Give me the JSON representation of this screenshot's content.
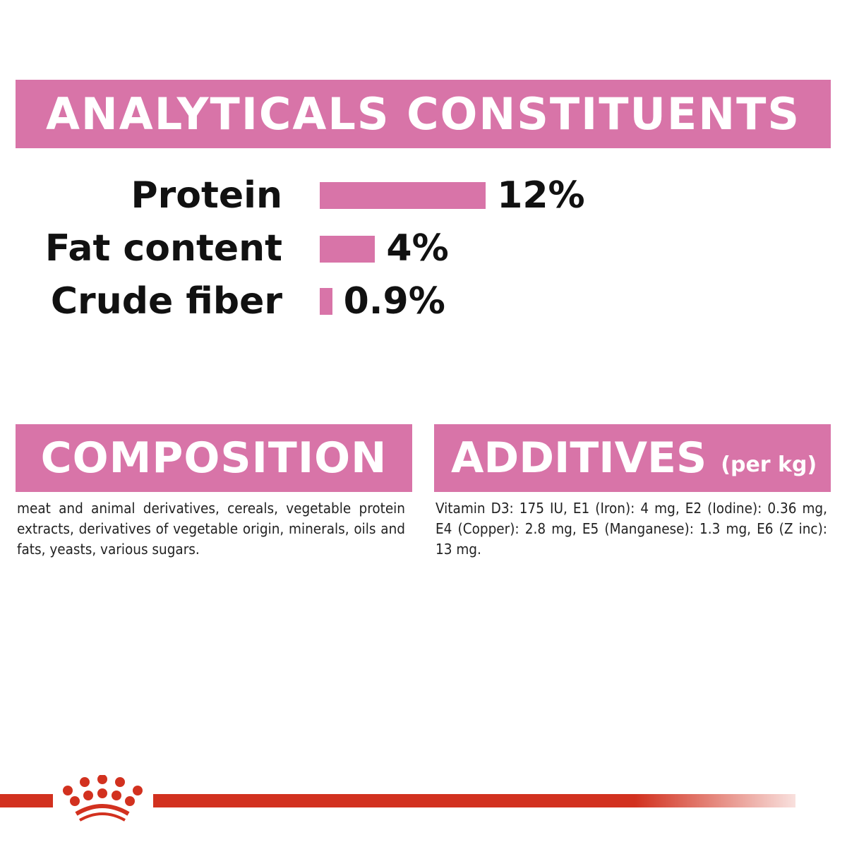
{
  "analytical": {
    "title": "ANALYTICALS CONSTITUENTS",
    "items": [
      {
        "label": "Protein",
        "value": 12,
        "display": "12%"
      },
      {
        "label": "Fat content",
        "value": 4,
        "display": "4%"
      },
      {
        "label": "Crude fiber",
        "value": 0.9,
        "display": "0.9%"
      }
    ]
  },
  "composition": {
    "title": "COMPOSITION",
    "text": "meat and animal derivatives, cereals, vegetable protein extracts, derivatives of vegetable origin, minerals, oils and fats, yeasts, various sugars."
  },
  "additives": {
    "title": "ADDITIVES",
    "unit": "(per kg)",
    "text": "Vitamin D3: 175 IU, E1 (Iron): 4 mg, E2 (Iodine): 0.36 mg, E4 (Copper): 2.8 mg, E5 (Manganese): 1.3 mg, E6 (Z inc): 13 mg."
  },
  "colors": {
    "accent": "#d874a8",
    "brand": "#d2311f"
  },
  "logo": {
    "icon": "royal-canin-crown-icon"
  }
}
